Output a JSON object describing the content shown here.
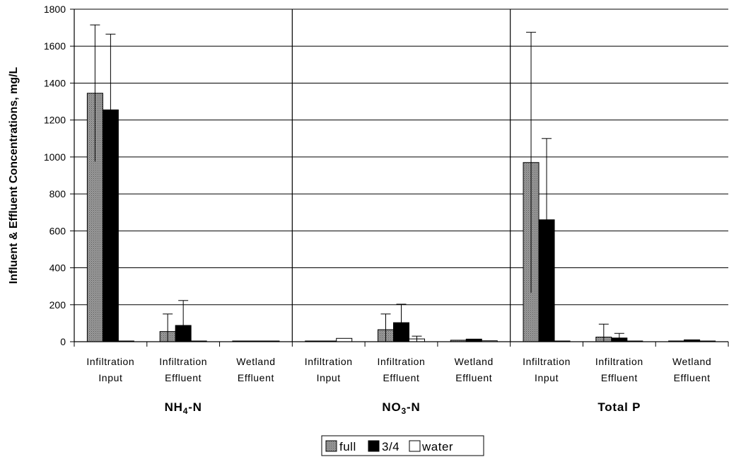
{
  "chart_data": {
    "type": "bar",
    "ylabel": "Influent & Effluent Concentrations, mg/L",
    "ylim": [
      0,
      1800
    ],
    "yticks": [
      0,
      200,
      400,
      600,
      800,
      1000,
      1200,
      1400,
      1600,
      1800
    ],
    "grid": true,
    "legend_position": "bottom-center",
    "colors": {
      "full": "#8a8a8a",
      "3/4": "#000000",
      "water": "#ffffff"
    },
    "groups": [
      {
        "label_main": "NH",
        "label_sub": "4",
        "label_rest": "-N",
        "categories": [
          {
            "line1": "Infiltration",
            "line2": "Input"
          },
          {
            "line1": "Infiltration",
            "line2": "Effluent"
          },
          {
            "line1": "Wetland",
            "line2": "Effluent"
          }
        ]
      },
      {
        "label_main": "NO",
        "label_sub": "3",
        "label_rest": "-N",
        "categories": [
          {
            "line1": "Infiltration",
            "line2": "Input"
          },
          {
            "line1": "Infiltration",
            "line2": "Effluent"
          },
          {
            "line1": "Wetland",
            "line2": "Effluent"
          }
        ]
      },
      {
        "label_main": "Total P",
        "label_sub": "",
        "label_rest": "",
        "categories": [
          {
            "line1": "Infiltration",
            "line2": "Input"
          },
          {
            "line1": "Infiltration",
            "line2": "Effluent"
          },
          {
            "line1": "Wetland",
            "line2": "Effluent"
          }
        ]
      }
    ],
    "series": [
      {
        "name": "full",
        "values": [
          1345,
          55,
          3,
          1,
          65,
          8,
          970,
          25,
          4
        ],
        "errors": [
          370,
          95,
          0,
          0,
          85,
          0,
          705,
          70,
          0
        ]
      },
      {
        "name": "3/4",
        "values": [
          1255,
          88,
          3,
          1,
          103,
          14,
          660,
          20,
          10
        ],
        "errors": [
          410,
          135,
          0,
          0,
          100,
          0,
          440,
          25,
          0
        ]
      },
      {
        "name": "water",
        "values": [
          1,
          1,
          1,
          18,
          15,
          5,
          1,
          1,
          1
        ],
        "errors": [
          0,
          0,
          0,
          0,
          15,
          0,
          0,
          0,
          0
        ]
      }
    ]
  }
}
